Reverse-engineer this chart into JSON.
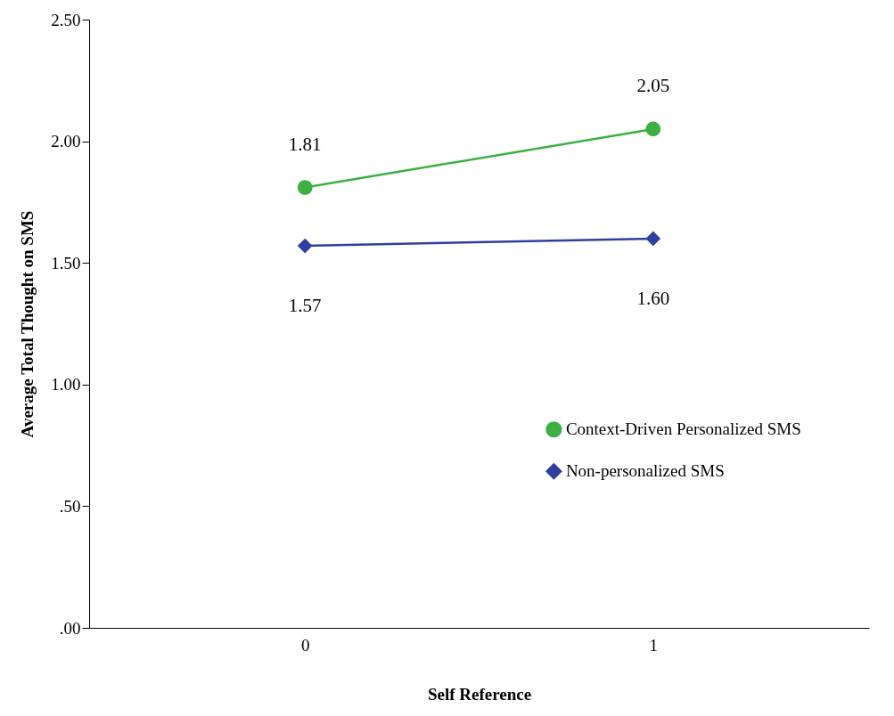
{
  "chart_data": {
    "type": "line",
    "xlabel": "Self Reference",
    "ylabel": "Average Total Thought on SMS",
    "categories": [
      "0",
      "1"
    ],
    "series": [
      {
        "name": "Context-Driven Personalized SMS",
        "color": "#3cb043",
        "marker": "circle",
        "values": [
          1.81,
          2.05
        ],
        "value_labels": [
          "1.81",
          "2.05"
        ]
      },
      {
        "name": "Non-personalized SMS",
        "color": "#2e3f9e",
        "marker": "diamond",
        "values": [
          1.57,
          1.6
        ],
        "value_labels": [
          "1.57",
          "1.60"
        ]
      }
    ],
    "ylim": [
      0,
      2.5
    ],
    "yticks": [
      {
        "value": 0,
        "label": ".00"
      },
      {
        "value": 0.5,
        "label": ".50"
      },
      {
        "value": 1,
        "label": "1.00"
      },
      {
        "value": 1.5,
        "label": "1.50"
      },
      {
        "value": 2,
        "label": "2.00"
      },
      {
        "value": 2.5,
        "label": "2.50"
      }
    ],
    "grid": false,
    "legend": "right",
    "data_labels": true
  }
}
